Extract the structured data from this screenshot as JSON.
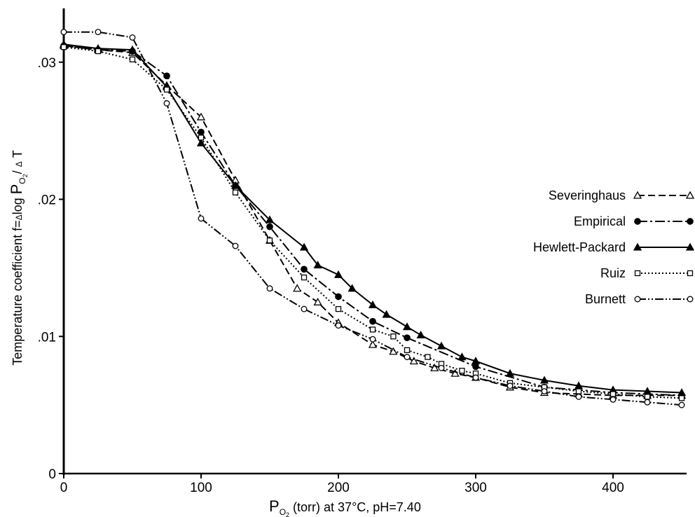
{
  "chart_data": {
    "type": "line",
    "xlabel": {
      "main": "P",
      "sub": "O",
      "sub2": "2",
      "rest": " (torr) at 37°C, pH=7.40"
    },
    "ylabel": {
      "prefix": "Temperature coefficient  f=",
      "delta1": "Δ",
      "log": "log ",
      "P": "P",
      "sub": "O",
      "sub2": "2",
      "slash": "/ ",
      "delta2": "Δ",
      "T": " T"
    },
    "xlim": [
      0,
      450
    ],
    "ylim": [
      0,
      0.033
    ],
    "x_ticks": [
      {
        "value": 0,
        "label": "0"
      },
      {
        "value": 100,
        "label": "100"
      },
      {
        "value": 200,
        "label": "200"
      },
      {
        "value": 300,
        "label": "300"
      },
      {
        "value": 400,
        "label": "400"
      }
    ],
    "y_ticks": [
      {
        "value": 0,
        "label": "0"
      },
      {
        "value": 0.01,
        "label": ".01"
      },
      {
        "value": 0.02,
        "label": ".02"
      },
      {
        "value": 0.03,
        "label": ".03"
      }
    ],
    "grid": false,
    "legend_position": "right",
    "series": [
      {
        "name": "Severinghaus",
        "marker": "open-triangle",
        "dash": "10,5",
        "x": [
          0,
          25,
          50,
          75,
          100,
          125,
          150,
          170,
          185,
          200,
          225,
          240,
          255,
          270,
          285,
          300,
          325,
          350,
          375,
          400,
          425,
          450
        ],
        "y": [
          0.0312,
          0.0309,
          0.0307,
          0.0283,
          0.026,
          0.0214,
          0.017,
          0.0135,
          0.0125,
          0.011,
          0.0094,
          0.0089,
          0.0082,
          0.0077,
          0.0073,
          0.007,
          0.0063,
          0.0059,
          0.0058,
          0.0057,
          0.0057,
          0.0057
        ]
      },
      {
        "name": "Empirical",
        "marker": "filled-circle",
        "dash": "14,4,3,4",
        "x": [
          0,
          25,
          50,
          75,
          100,
          125,
          150,
          175,
          200,
          225,
          250,
          300,
          350,
          400,
          450
        ],
        "y": [
          0.0312,
          0.0309,
          0.0308,
          0.029,
          0.0249,
          0.021,
          0.018,
          0.0149,
          0.0129,
          0.0111,
          0.0099,
          0.0078,
          0.0063,
          0.0059,
          0.0057
        ]
      },
      {
        "name": "Hewlett-Packard",
        "marker": "filled-triangle",
        "dash": "",
        "x": [
          0,
          25,
          50,
          75,
          100,
          125,
          150,
          175,
          185,
          200,
          210,
          225,
          235,
          250,
          260,
          275,
          290,
          300,
          325,
          350,
          375,
          400,
          425,
          450
        ],
        "y": [
          0.0313,
          0.031,
          0.0309,
          0.0282,
          0.0241,
          0.021,
          0.0185,
          0.0165,
          0.0152,
          0.0145,
          0.0135,
          0.0123,
          0.0116,
          0.0107,
          0.0101,
          0.0093,
          0.0085,
          0.0082,
          0.0073,
          0.0068,
          0.0064,
          0.0061,
          0.006,
          0.0059
        ]
      },
      {
        "name": "Ruiz",
        "marker": "open-square",
        "dash": "2,3",
        "x": [
          0,
          25,
          50,
          75,
          100,
          125,
          150,
          175,
          200,
          225,
          240,
          250,
          265,
          275,
          290,
          300,
          325,
          350,
          375,
          400,
          425,
          450
        ],
        "y": [
          0.0311,
          0.0308,
          0.0302,
          0.028,
          0.0245,
          0.0205,
          0.017,
          0.0143,
          0.012,
          0.0105,
          0.01,
          0.009,
          0.0085,
          0.008,
          0.0075,
          0.0073,
          0.0066,
          0.0063,
          0.006,
          0.0058,
          0.0056,
          0.0055
        ]
      },
      {
        "name": "Burnett",
        "marker": "open-circle",
        "dash": "12,3,2,3,2,3",
        "x": [
          0,
          25,
          50,
          75,
          100,
          125,
          150,
          175,
          200,
          225,
          250,
          275,
          300,
          325,
          350,
          375,
          400,
          425,
          450
        ],
        "y": [
          0.0322,
          0.0322,
          0.0318,
          0.027,
          0.0186,
          0.0166,
          0.0135,
          0.012,
          0.0108,
          0.0098,
          0.0085,
          0.0077,
          0.007,
          0.0064,
          0.006,
          0.0056,
          0.0054,
          0.0052,
          0.005
        ]
      }
    ]
  }
}
